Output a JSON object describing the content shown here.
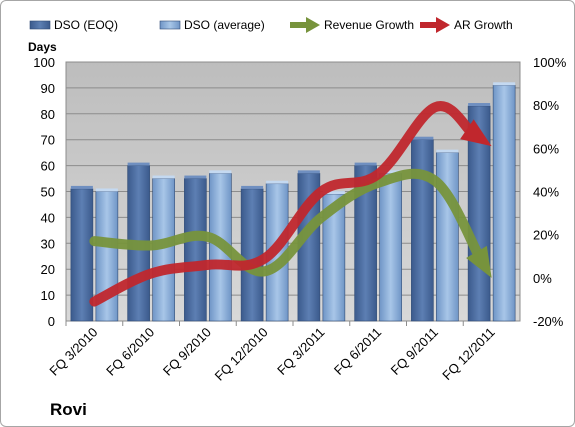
{
  "chart_data": {
    "type": "bar",
    "title": "Rovi",
    "ylabel": "Days",
    "categories": [
      "FQ 3/2010",
      "FQ 6/2010",
      "FQ 9/2010",
      "FQ 12/2010",
      "FQ 3/2011",
      "FQ 6/2011",
      "FQ 9/2011",
      "FQ 12/2011"
    ],
    "y_ticks": [
      "0",
      "10",
      "20",
      "30",
      "40",
      "50",
      "60",
      "70",
      "80",
      "90",
      "100"
    ],
    "y2_ticks": [
      "-20%",
      "0%",
      "20%",
      "40%",
      "60%",
      "80%",
      "100%"
    ],
    "ylim": [
      0,
      100
    ],
    "y2lim": [
      -20,
      100
    ],
    "grid": true,
    "legend_position": "top",
    "series": [
      {
        "name": "DSO (EOQ)",
        "kind": "bar",
        "axis": "left",
        "color": "#4f6fa0",
        "values": [
          51,
          60,
          55,
          51,
          57,
          60,
          70,
          83
        ]
      },
      {
        "name": "DSO (average)",
        "kind": "bar",
        "axis": "left",
        "color": "#8fb1d9",
        "values": [
          50,
          55,
          57,
          53,
          49,
          57,
          65,
          91
        ]
      },
      {
        "name": "Revenue Growth",
        "kind": "arrow-line",
        "axis": "right",
        "color": "#77933c",
        "values": [
          17,
          15,
          19,
          3,
          28,
          44,
          45,
          0
        ]
      },
      {
        "name": "AR Growth",
        "kind": "arrow-line",
        "axis": "right",
        "color": "#c0272d",
        "values": [
          -11,
          2,
          6,
          9,
          40,
          48,
          79,
          61
        ]
      }
    ]
  }
}
